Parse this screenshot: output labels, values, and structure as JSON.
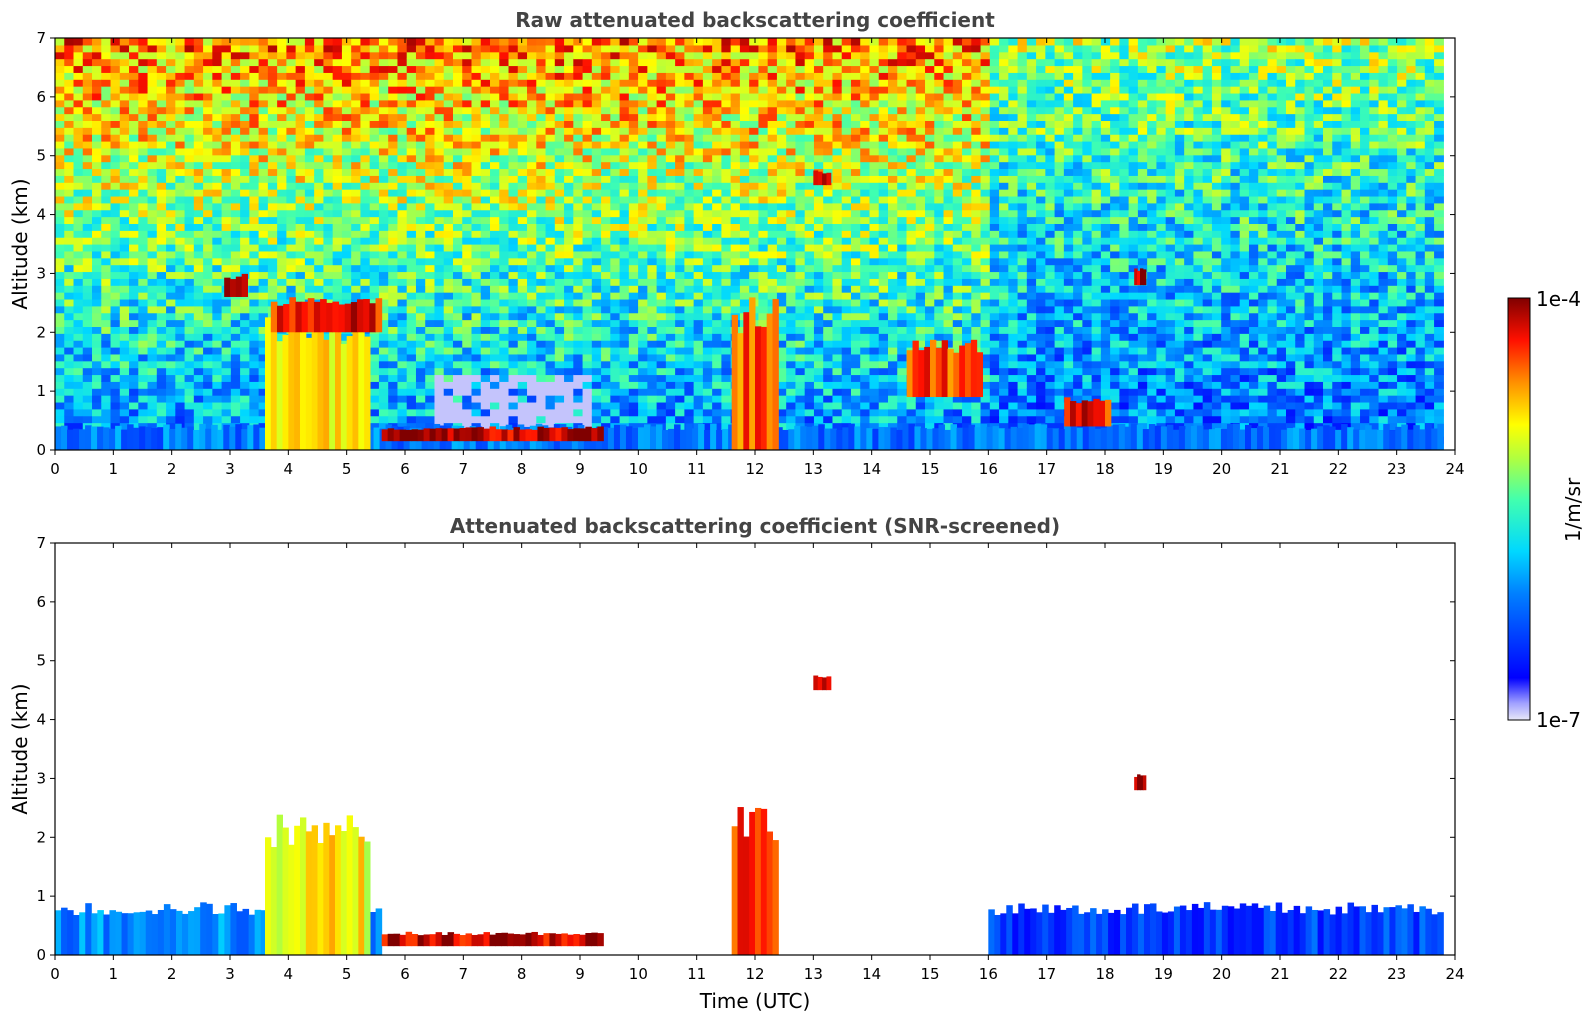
{
  "chart_data": [
    {
      "type": "heatmap",
      "title": "Raw attenuated backscattering coefficient",
      "xlabel": "",
      "ylabel": "Altitude (km)",
      "xlim": [
        0,
        24
      ],
      "ylim": [
        0,
        7
      ],
      "xticks": [
        "0",
        "1",
        "2",
        "3",
        "4",
        "5",
        "6",
        "7",
        "8",
        "9",
        "10",
        "11",
        "12",
        "13",
        "14",
        "15",
        "16",
        "17",
        "18",
        "19",
        "20",
        "21",
        "22",
        "23",
        "24"
      ],
      "yticks": [
        "0",
        "1",
        "2",
        "3",
        "4",
        "5",
        "6",
        "7"
      ],
      "grid": false,
      "layers": [
        {
          "x": [
            0,
            23.8
          ],
          "y": [
            0,
            0.45
          ],
          "level": 0.28,
          "note": "boundary layer"
        },
        {
          "x": [
            3.6,
            5.4
          ],
          "y": [
            0,
            2.4
          ],
          "level": 0.7
        },
        {
          "x": [
            5.6,
            9.4
          ],
          "y": [
            0.15,
            0.4
          ],
          "level": 0.95
        },
        {
          "x": [
            11.6,
            12.4
          ],
          "y": [
            0,
            2.6
          ],
          "level": 0.85
        },
        {
          "x": [
            2.9,
            3.3
          ],
          "y": [
            2.6,
            3.0
          ],
          "level": 0.95
        },
        {
          "x": [
            3.7,
            5.6
          ],
          "y": [
            2.0,
            2.6
          ],
          "level": 0.9
        },
        {
          "x": [
            18.5,
            18.7
          ],
          "y": [
            2.8,
            3.1
          ],
          "level": 0.95
        },
        {
          "x": [
            13.0,
            13.3
          ],
          "y": [
            4.5,
            4.75
          ],
          "level": 0.95
        },
        {
          "x": [
            14.6,
            15.9
          ],
          "y": [
            0.9,
            1.9
          ],
          "level": 0.85
        },
        {
          "x": [
            17.3,
            18.1
          ],
          "y": [
            0.4,
            0.9
          ],
          "level": 0.9
        }
      ]
    },
    {
      "type": "heatmap",
      "title": "Attenuated backscattering coefficient (SNR-screened)",
      "xlabel": "Time (UTC)",
      "ylabel": "Altitude (km)",
      "xlim": [
        0,
        24
      ],
      "ylim": [
        0,
        7
      ],
      "xticks": [
        "0",
        "1",
        "2",
        "3",
        "4",
        "5",
        "6",
        "7",
        "8",
        "9",
        "10",
        "11",
        "12",
        "13",
        "14",
        "15",
        "16",
        "17",
        "18",
        "19",
        "20",
        "21",
        "22",
        "23",
        "24"
      ],
      "yticks": [
        "0",
        "1",
        "2",
        "3",
        "4",
        "5",
        "6",
        "7"
      ],
      "grid": false,
      "layers": [
        {
          "x": [
            0,
            5.6
          ],
          "y": [
            0,
            0.9
          ],
          "level": 0.3
        },
        {
          "x": [
            16,
            23.8
          ],
          "y": [
            0,
            0.9
          ],
          "level": 0.2
        },
        {
          "x": [
            3.6,
            5.4
          ],
          "y": [
            0,
            2.4
          ],
          "level": 0.7
        },
        {
          "x": [
            5.6,
            9.4
          ],
          "y": [
            0.15,
            0.4
          ],
          "level": 0.95
        },
        {
          "x": [
            11.6,
            12.4
          ],
          "y": [
            0,
            2.6
          ],
          "level": 0.85
        },
        {
          "x": [
            18.5,
            18.7
          ],
          "y": [
            2.8,
            3.1
          ],
          "level": 0.95
        },
        {
          "x": [
            13.0,
            13.3
          ],
          "y": [
            4.5,
            4.75
          ],
          "level": 0.95
        }
      ]
    }
  ],
  "colorbar": {
    "label": "1/m/sr",
    "max_label": "1e-4",
    "min_label": "1e-7",
    "colormap": "jet",
    "scale": "log"
  }
}
